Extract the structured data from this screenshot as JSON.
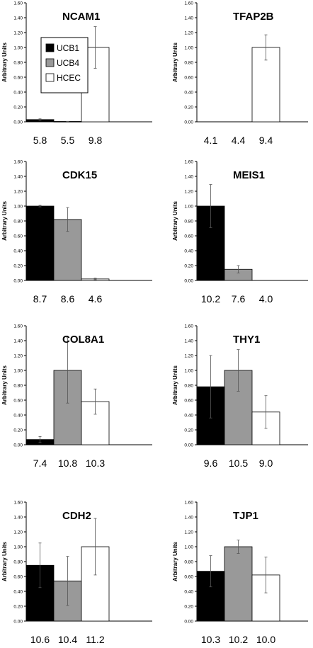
{
  "chart_data": [
    {
      "type": "bar",
      "title": "NCAM1",
      "ylabel": "Arbitrary Units",
      "ylim": [
        0,
        1.6
      ],
      "yticks": [
        "0.00",
        "0.20",
        "0.40",
        "0.60",
        "0.80",
        "1.00",
        "1.20",
        "1.40",
        "1.60"
      ],
      "categories": [
        "UCB1",
        "UCB4",
        "HCEC"
      ],
      "values": [
        0.03,
        0.005,
        1.0
      ],
      "errors": [
        0.01,
        0.002,
        0.28
      ],
      "value_labels": [
        "5.8",
        "5.5",
        "9.8"
      ],
      "legend": {
        "placement": "top-left",
        "entries": [
          "UCB1",
          "UCB4",
          "HCEC"
        ]
      }
    },
    {
      "type": "bar",
      "title": "TFAP2B",
      "ylabel": "Arbitrary Units",
      "ylim": [
        0,
        1.6
      ],
      "yticks": [
        "0.00",
        "0.20",
        "0.40",
        "0.60",
        "0.80",
        "1.00",
        "1.20",
        "1.40",
        "1.60"
      ],
      "categories": [
        "UCB1",
        "UCB4",
        "HCEC"
      ],
      "values": [
        0,
        0,
        1.0
      ],
      "errors": [
        0,
        0,
        0.17
      ],
      "value_labels": [
        "4.1",
        "4.4",
        "9.4"
      ]
    },
    {
      "type": "bar",
      "title": "CDK15",
      "ylabel": "Arbitrary Units",
      "ylim": [
        0,
        1.6
      ],
      "yticks": [
        "0.00",
        "0.20",
        "0.40",
        "0.60",
        "0.80",
        "1.00",
        "1.20",
        "1.40",
        "1.60"
      ],
      "categories": [
        "UCB1",
        "UCB4",
        "HCEC"
      ],
      "values": [
        1.0,
        0.82,
        0.02
      ],
      "errors": [
        0.01,
        0.16,
        0.01
      ],
      "value_labels": [
        "8.7",
        "8.6",
        "4.6"
      ]
    },
    {
      "type": "bar",
      "title": "MEIS1",
      "ylabel": "Arbitrary Units",
      "ylim": [
        0,
        1.6
      ],
      "yticks": [
        "0.00",
        "0.20",
        "0.40",
        "0.60",
        "0.80",
        "1.00",
        "1.20",
        "1.40",
        "1.60"
      ],
      "categories": [
        "UCB1",
        "UCB4",
        "HCEC"
      ],
      "values": [
        1.0,
        0.15,
        0.0
      ],
      "errors": [
        0.29,
        0.05,
        0
      ],
      "value_labels": [
        "10.2",
        "7.6",
        "4.0"
      ]
    },
    {
      "type": "bar",
      "title": "COL8A1",
      "ylabel": "Arbitrary Units",
      "ylim": [
        0,
        1.6
      ],
      "yticks": [
        "0.00",
        "0.20",
        "0.40",
        "0.60",
        "0.80",
        "1.00",
        "1.20",
        "1.40",
        "1.60"
      ],
      "categories": [
        "UCB1",
        "UCB4",
        "HCEC"
      ],
      "values": [
        0.07,
        1.0,
        0.58
      ],
      "errors": [
        0.04,
        0.44,
        0.17
      ],
      "value_labels": [
        "7.4",
        "10.8",
        "10.3"
      ]
    },
    {
      "type": "bar",
      "title": "THY1",
      "ylabel": "Arbitrary Units",
      "ylim": [
        0,
        1.6
      ],
      "yticks": [
        "0.00",
        "0.20",
        "0.40",
        "0.60",
        "0.80",
        "1.00",
        "1.20",
        "1.40",
        "1.60"
      ],
      "categories": [
        "UCB1",
        "UCB4",
        "HCEC"
      ],
      "values": [
        0.78,
        1.0,
        0.44
      ],
      "errors": [
        0.42,
        0.28,
        0.22
      ],
      "value_labels": [
        "9.6",
        "10.5",
        "9.0"
      ]
    },
    {
      "type": "bar",
      "title": "CDH2",
      "ylabel": "Arbitrary Units",
      "ylim": [
        0,
        1.6
      ],
      "yticks": [
        "0.00",
        "0.20",
        "0.40",
        "0.60",
        "0.80",
        "1.00",
        "1.20",
        "1.40",
        "1.60"
      ],
      "categories": [
        "UCB1",
        "UCB4",
        "HCEC"
      ],
      "values": [
        0.75,
        0.54,
        1.0
      ],
      "errors": [
        0.3,
        0.33,
        0.38
      ],
      "value_labels": [
        "10.6",
        "10.4",
        "11.2"
      ]
    },
    {
      "type": "bar",
      "title": "TJP1",
      "ylabel": "Arbitrary Units",
      "ylim": [
        0,
        1.6
      ],
      "yticks": [
        "0.00",
        "0.20",
        "0.40",
        "0.60",
        "0.80",
        "1.00",
        "1.20",
        "1.40",
        "1.60"
      ],
      "categories": [
        "UCB1",
        "UCB4",
        "HCEC"
      ],
      "values": [
        0.67,
        1.0,
        0.62
      ],
      "errors": [
        0.21,
        0.09,
        0.24
      ],
      "value_labels": [
        "10.3",
        "10.2",
        "10.0"
      ]
    }
  ],
  "colors": {
    "UCB1": "#000000",
    "UCB4": "#999999",
    "HCEC": "#ffffff",
    "outline": "#000000",
    "axis": "#000000",
    "errorbar": "#555555"
  }
}
